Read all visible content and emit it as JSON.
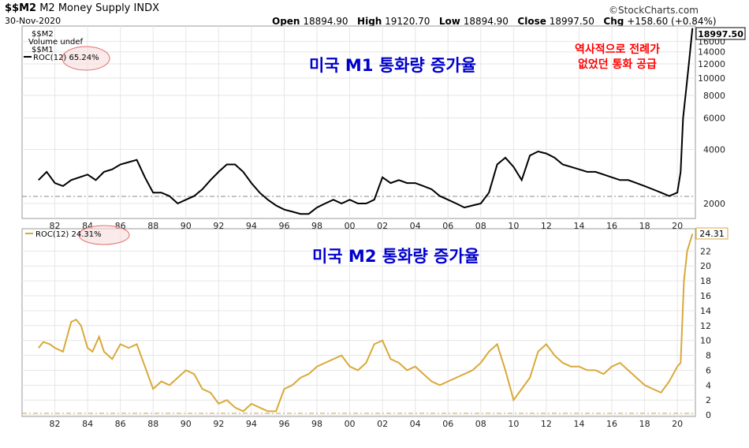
{
  "header": {
    "symbol": "$$M2",
    "name": "M2 Money Supply",
    "exchange": "INDX",
    "date": "30-Nov-2020",
    "open_label": "Open",
    "open_value": "18894.90",
    "high_label": "High",
    "high_value": "19120.70",
    "low_label": "Low",
    "low_value": "18894.90",
    "close_label": "Close",
    "close_value": "18997.50",
    "chg_label": "Chg",
    "chg_value": "+158.60 (+0.84%)",
    "brand": "©StockCharts.com"
  },
  "top_panel": {
    "legend": [
      "$$M2",
      "Volume undef",
      "$$M1",
      "ROC(12) 65.24%"
    ],
    "annotation_title": "미국 M1 통화량 증가율",
    "annotation_red_line1": "역사적으로 전례가",
    "annotation_red_line2": "없었던 통화 공급",
    "last_value_label": "18997.50"
  },
  "bottom_panel": {
    "legend": "ROC(12) 24.31%",
    "annotation_title": "미국 M2 통화량 증가율",
    "last_value_label": "24.31"
  },
  "colors": {
    "m1_line": "#000000",
    "m2_line": "#d9a93a",
    "annotation_blue": "#0000cc",
    "annotation_red": "#ff0000",
    "circle": "#e07070"
  },
  "chart_data": [
    {
      "type": "line",
      "title": "",
      "series": [
        {
          "name": "$$M1",
          "x": [
            1981.0,
            1981.5,
            1982.0,
            1982.5,
            1983.0,
            1983.5,
            1984.0,
            1984.5,
            1985.0,
            1985.5,
            1986.0,
            1986.5,
            1987.0,
            1987.5,
            1988.0,
            1988.5,
            1989.0,
            1989.5,
            1990.0,
            1990.5,
            1991.0,
            1991.5,
            1992.0,
            1992.5,
            1993.0,
            1993.5,
            1994.0,
            1994.5,
            1995.0,
            1995.5,
            1996.0,
            1996.5,
            1997.0,
            1997.5,
            1998.0,
            1998.5,
            1999.0,
            1999.5,
            2000.0,
            2000.5,
            2001.0,
            2001.5,
            2002.0,
            2002.5,
            2003.0,
            2003.5,
            2004.0,
            2004.5,
            2005.0,
            2005.5,
            2006.0,
            2006.5,
            2007.0,
            2007.5,
            2008.0,
            2008.5,
            2009.0,
            2009.5,
            2010.0,
            2010.5,
            2011.0,
            2011.5,
            2012.0,
            2012.5,
            2013.0,
            2013.5,
            2014.0,
            2014.5,
            2015.0,
            2015.5,
            2016.0,
            2016.5,
            2017.0,
            2017.5,
            2018.0,
            2018.5,
            2019.0,
            2019.5,
            2020.0,
            2020.2,
            2020.35,
            2020.5,
            2020.7,
            2020.92
          ],
          "values": [
            2700,
            3000,
            2600,
            2500,
            2700,
            2800,
            2900,
            2700,
            3000,
            3100,
            3300,
            3400,
            3500,
            2800,
            2300,
            2300,
            2200,
            2000,
            2100,
            2200,
            2400,
            2700,
            3000,
            3300,
            3300,
            3000,
            2600,
            2300,
            2100,
            1950,
            1850,
            1800,
            1750,
            1750,
            1900,
            2000,
            2100,
            2000,
            2100,
            2000,
            2000,
            2100,
            2800,
            2600,
            2700,
            2600,
            2600,
            2500,
            2400,
            2200,
            2100,
            2000,
            1900,
            1950,
            2000,
            2300,
            3300,
            3600,
            3200,
            2700,
            3700,
            3900,
            3800,
            3600,
            3300,
            3200,
            3100,
            3000,
            3000,
            2900,
            2800,
            2700,
            2700,
            2600,
            2500,
            2400,
            2300,
            2200,
            2300,
            3000,
            6000,
            8000,
            12000,
            18997.5
          ]
        }
      ],
      "y_ticks": [
        2000,
        4000,
        6000,
        8000,
        10000,
        12000,
        14000,
        16000
      ],
      "x_ticks": [
        "82",
        "84",
        "86",
        "88",
        "90",
        "92",
        "94",
        "96",
        "98",
        "00",
        "02",
        "04",
        "06",
        "08",
        "10",
        "12",
        "14",
        "16",
        "18",
        "20"
      ],
      "y_scale": "log"
    },
    {
      "type": "line",
      "title": "",
      "series": [
        {
          "name": "ROC(12)",
          "x": [
            1981.0,
            1981.3,
            1981.7,
            1982.0,
            1982.5,
            1983.0,
            1983.3,
            1983.6,
            1984.0,
            1984.3,
            1984.7,
            1985.0,
            1985.5,
            1986.0,
            1986.5,
            1987.0,
            1987.5,
            1988.0,
            1988.5,
            1989.0,
            1989.5,
            1990.0,
            1990.5,
            1991.0,
            1991.5,
            1992.0,
            1992.5,
            1993.0,
            1993.5,
            1994.0,
            1994.5,
            1995.0,
            1995.5,
            1996.0,
            1996.5,
            1997.0,
            1997.5,
            1998.0,
            1998.5,
            1999.0,
            1999.5,
            2000.0,
            2000.5,
            2001.0,
            2001.5,
            2002.0,
            2002.5,
            2003.0,
            2003.5,
            2004.0,
            2004.5,
            2005.0,
            2005.5,
            2006.0,
            2006.5,
            2007.0,
            2007.5,
            2008.0,
            2008.5,
            2009.0,
            2009.5,
            2010.0,
            2010.5,
            2011.0,
            2011.5,
            2012.0,
            2012.5,
            2013.0,
            2013.5,
            2014.0,
            2014.5,
            2015.0,
            2015.5,
            2016.0,
            2016.5,
            2017.0,
            2017.5,
            2018.0,
            2018.5,
            2019.0,
            2019.5,
            2020.0,
            2020.2,
            2020.4,
            2020.6,
            2020.92
          ],
          "values": [
            9.0,
            9.8,
            9.5,
            9.0,
            8.5,
            12.5,
            12.8,
            12.0,
            9.0,
            8.5,
            10.5,
            8.5,
            7.5,
            9.5,
            9.0,
            9.5,
            6.5,
            3.5,
            4.5,
            4.0,
            5.0,
            6.0,
            5.5,
            3.5,
            3.0,
            1.5,
            2.0,
            1.0,
            0.5,
            1.5,
            1.0,
            0.5,
            0.5,
            3.5,
            4.0,
            5.0,
            5.5,
            6.5,
            7.0,
            7.5,
            8.0,
            6.5,
            6.0,
            7.0,
            9.5,
            10.0,
            7.5,
            7.0,
            6.0,
            6.5,
            5.5,
            4.5,
            4.0,
            4.5,
            5.0,
            5.5,
            6.0,
            7.0,
            8.5,
            9.5,
            6.0,
            2.0,
            3.5,
            5.0,
            8.5,
            9.5,
            8.0,
            7.0,
            6.5,
            6.5,
            6.0,
            6.0,
            5.5,
            6.5,
            7.0,
            6.0,
            5.0,
            4.0,
            3.5,
            3.0,
            4.5,
            6.5,
            7.0,
            18.0,
            22.0,
            24.31
          ]
        }
      ],
      "y_ticks": [
        0,
        2,
        4,
        6,
        8,
        10,
        12,
        14,
        16,
        18,
        20,
        22
      ],
      "x_ticks": [
        "82",
        "84",
        "86",
        "88",
        "90",
        "92",
        "94",
        "96",
        "98",
        "00",
        "02",
        "04",
        "06",
        "08",
        "10",
        "12",
        "14",
        "16",
        "18",
        "20"
      ],
      "ylim": [
        -0.2,
        25
      ]
    }
  ]
}
